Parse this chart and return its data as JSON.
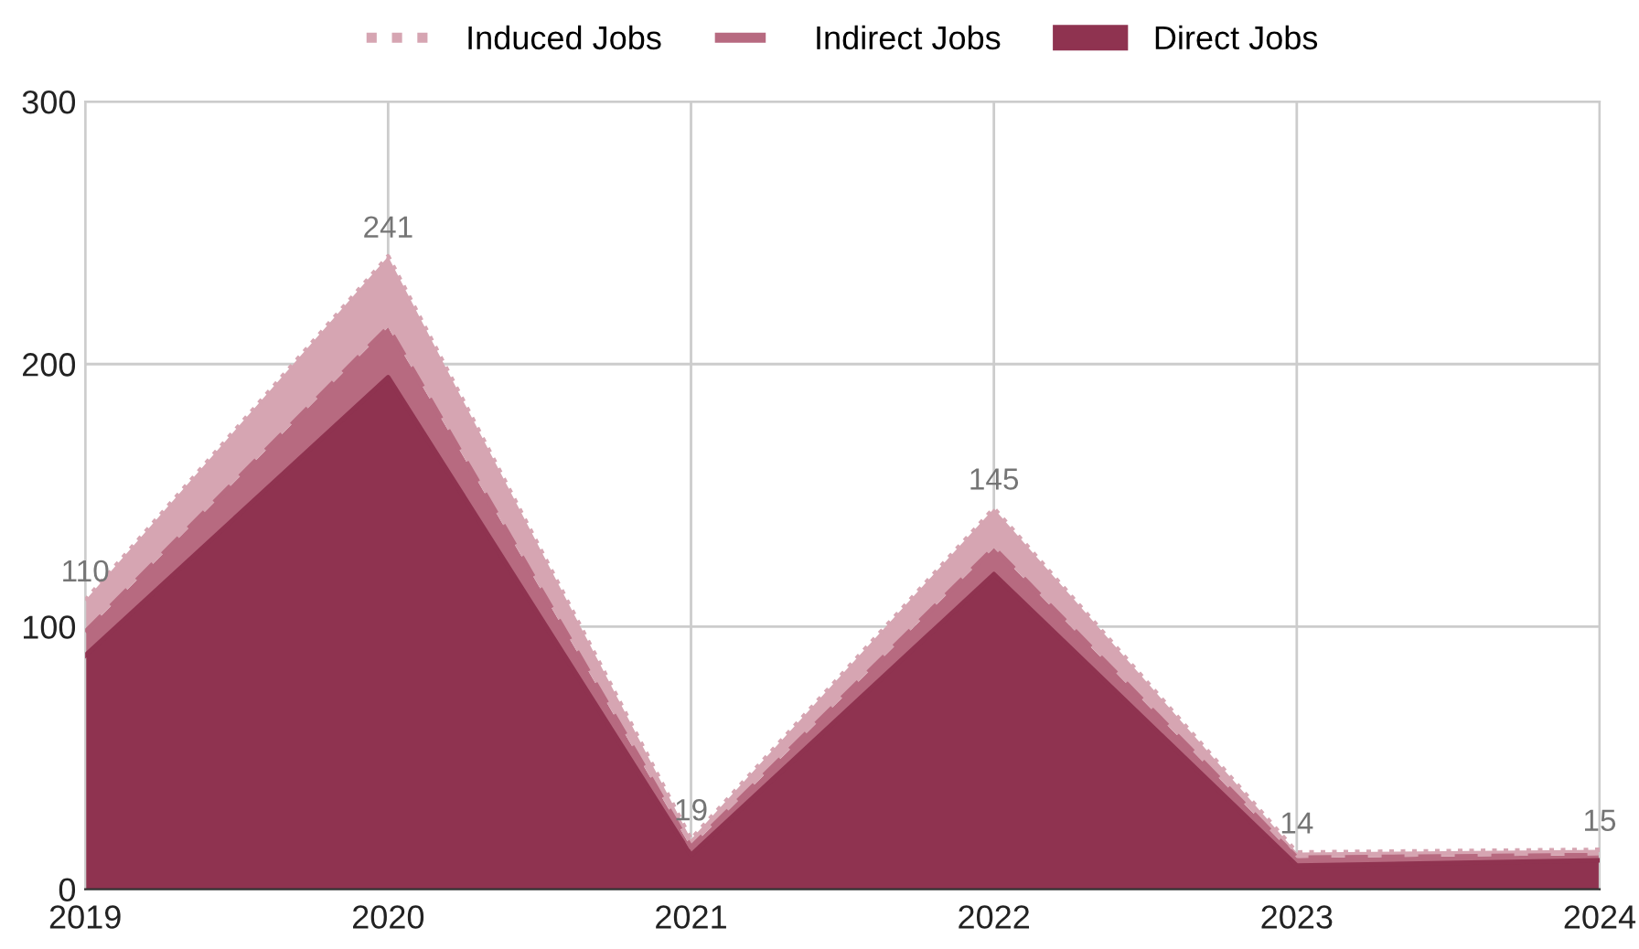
{
  "chart_data": {
    "type": "area",
    "stacked": true,
    "x": [
      "2019",
      "2020",
      "2021",
      "2022",
      "2023",
      "2024"
    ],
    "series": [
      {
        "name": "Direct Jobs",
        "color": "#8f3350",
        "line_style": "solid",
        "values": [
          89,
          195,
          13,
          120,
          9,
          11
        ]
      },
      {
        "name": "Indirect Jobs",
        "color": "#b76a80",
        "line_style": "dashed",
        "values": [
          9,
          19,
          3,
          10,
          3,
          2
        ]
      },
      {
        "name": "Induced Jobs",
        "color": "#d6a5b2",
        "line_style": "dotted",
        "values": [
          12,
          27,
          3,
          15,
          2,
          2
        ]
      }
    ],
    "totals": [
      "110",
      "241",
      "19",
      "145",
      "14",
      "15"
    ],
    "xlim": [
      "2019",
      "2024"
    ],
    "xticks": [
      "2019",
      "2020",
      "2021",
      "2022",
      "2023",
      "2024"
    ],
    "ylim": [
      0,
      300
    ],
    "yticks": [
      0,
      100,
      200,
      300
    ],
    "grid": true,
    "legend": "top"
  }
}
